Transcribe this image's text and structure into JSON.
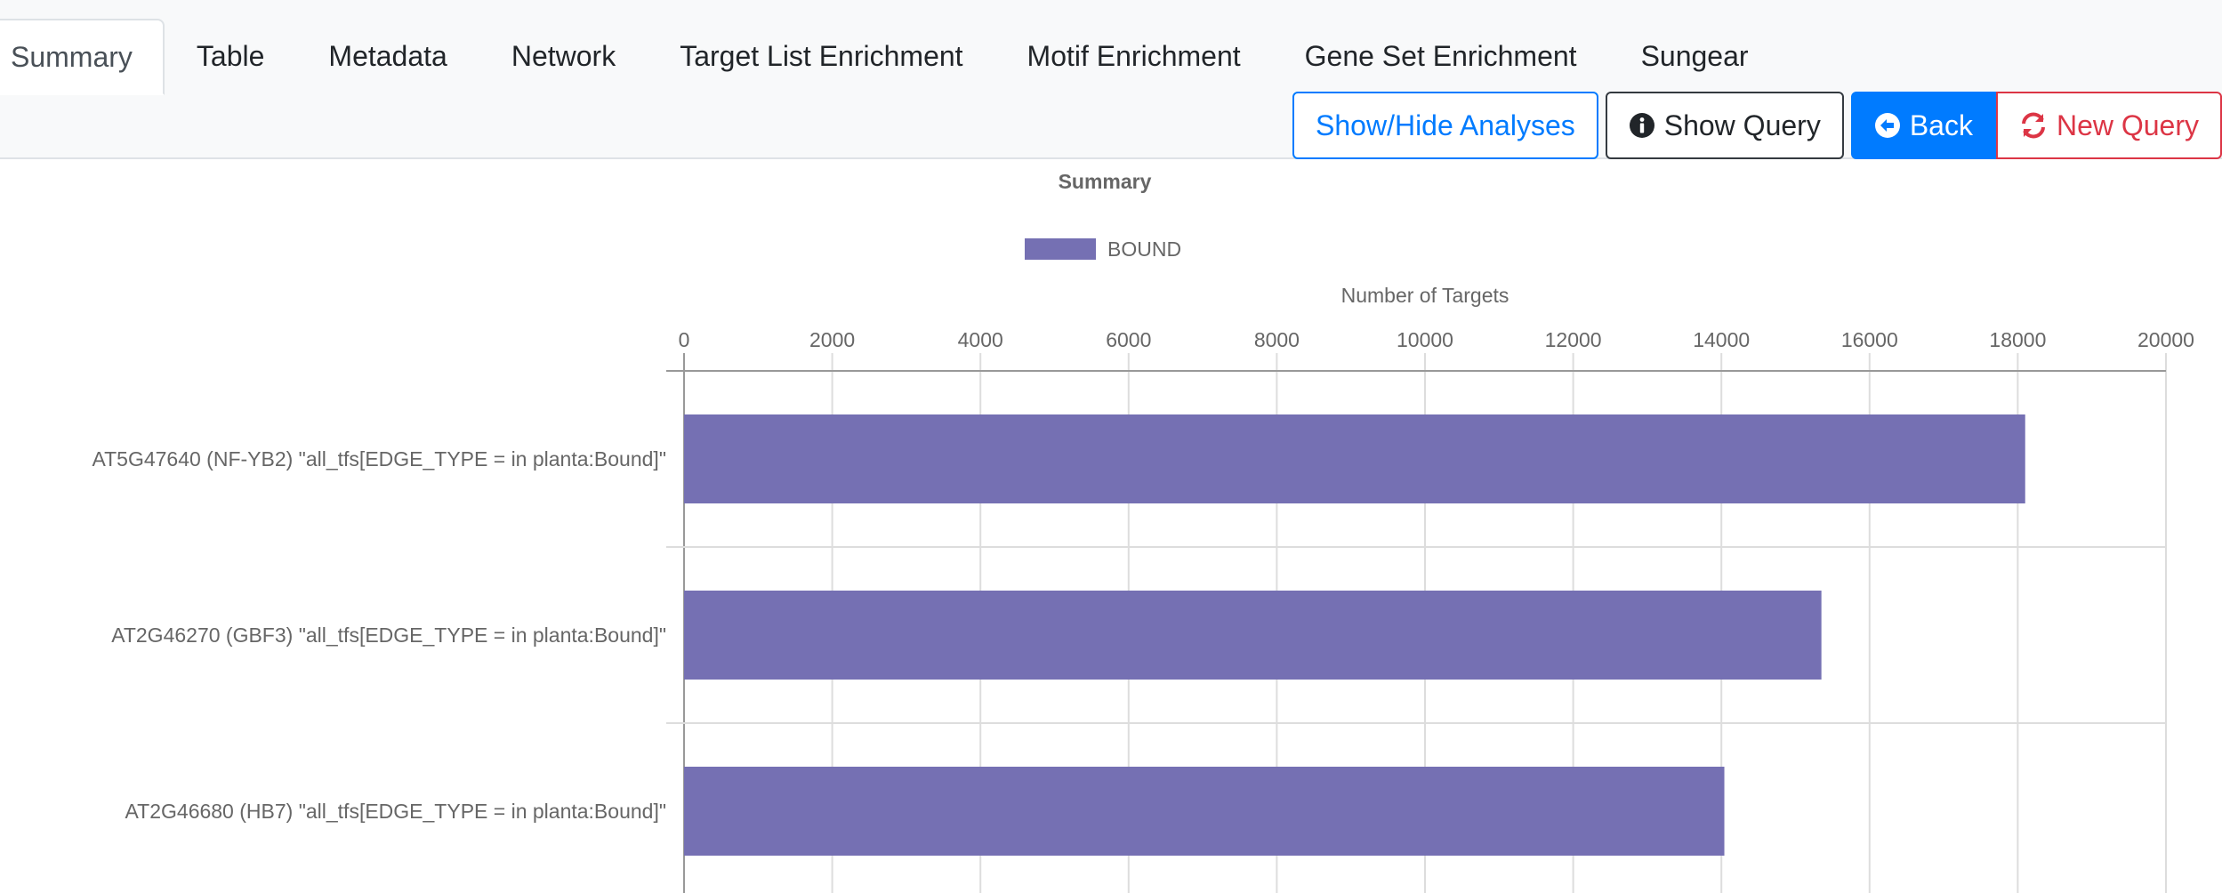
{
  "tabs": [
    {
      "label": "Summary",
      "active": true
    },
    {
      "label": "Table"
    },
    {
      "label": "Metadata"
    },
    {
      "label": "Network"
    },
    {
      "label": "Target List Enrichment"
    },
    {
      "label": "Motif Enrichment"
    },
    {
      "label": "Gene Set Enrichment"
    },
    {
      "label": "Sungear"
    }
  ],
  "actions": {
    "show_hide": "Show/Hide Analyses",
    "show_query": "Show Query",
    "back": "Back",
    "new_query": "New Query"
  },
  "icons": {
    "show_query": "info-circle-icon",
    "back": "arrow-circle-left-icon",
    "new_query": "refresh-icon"
  },
  "colors": {
    "primary": "#007bff",
    "danger": "#dc3545",
    "bar": "#7570b3"
  },
  "chart_data": {
    "type": "bar",
    "orientation": "horizontal",
    "title": "Summary",
    "xlabel": "Number of Targets",
    "ylabel": "",
    "legend": [
      "BOUND"
    ],
    "legend_position": "top",
    "xlim": [
      0,
      20000
    ],
    "ticks": [
      "0",
      "2000",
      "4000",
      "6000",
      "8000",
      "10000",
      "12000",
      "14000",
      "16000",
      "18000",
      "20000"
    ],
    "categories": [
      "AT5G47640 (NF-YB2) \"all_tfs[EDGE_TYPE = in planta:Bound]\"",
      "AT2G46270 (GBF3) \"all_tfs[EDGE_TYPE = in planta:Bound]\"",
      "AT2G46680 (HB7) \"all_tfs[EDGE_TYPE = in planta:Bound]\""
    ],
    "series": [
      {
        "name": "BOUND",
        "values": [
          18100,
          15350,
          14040
        ]
      }
    ],
    "grid": true
  }
}
